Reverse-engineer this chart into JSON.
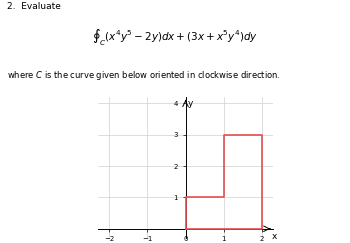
{
  "title_line1": "2.  Evaluate",
  "formula": "$\\oint_{C} (x^4y^5 - 2y)dx + (3x + x^5y^4)dy$",
  "subtitle": "where $C$ is the curve given below oriented in clockwise direction.",
  "curve_x": [
    0,
    2,
    2,
    1,
    1,
    0,
    0
  ],
  "curve_y": [
    0,
    0,
    3,
    3,
    1,
    1,
    0
  ],
  "curve_color": "#e05050",
  "curve_linewidth": 1.2,
  "xlim": [
    -2.3,
    2.3
  ],
  "ylim": [
    -0.3,
    4.2
  ],
  "xticks": [
    -2,
    -1,
    0,
    1,
    2
  ],
  "yticks": [
    1,
    2,
    3,
    4
  ],
  "xlabel": "x",
  "ylabel": "y",
  "grid_color": "#d0d0d0",
  "grid_linewidth": 0.5,
  "fig_width": 3.5,
  "fig_height": 2.43,
  "dpi": 100,
  "font_size_title": 6.5,
  "font_size_formula": 7.5,
  "font_size_subtitle": 6.0,
  "tick_fontsize": 5
}
